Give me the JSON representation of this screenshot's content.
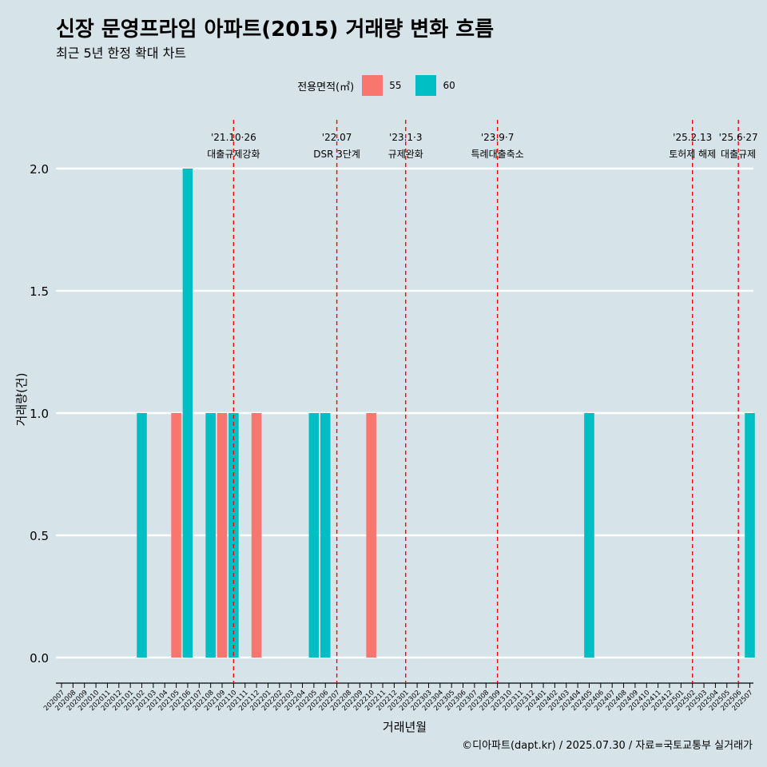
{
  "title": "신장 문영프라임 아파트(2015) 거래량 변화 흐름",
  "subtitle": "최근 5년 한정 확대 차트",
  "caption": "©디아파트(dapt.kr) / 2025.07.30 / 자료=국토교통부 실거래가",
  "legend": {
    "title": "전용면적(㎡)",
    "items": [
      {
        "label": "55",
        "color": "#f8766d"
      },
      {
        "label": "60",
        "color": "#00bfc4"
      }
    ]
  },
  "chart_data": {
    "type": "bar",
    "xlabel": "거래년월",
    "ylabel": "거래량(건)",
    "ylim": [
      0,
      2
    ],
    "yticks": [
      0.0,
      0.5,
      1.0,
      1.5,
      2.0
    ],
    "ytick_labels": [
      "0.0",
      "0.5",
      "1.0",
      "1.5",
      "2.0"
    ],
    "grid": true,
    "categories": [
      "202007",
      "202008",
      "202009",
      "202010",
      "202011",
      "202012",
      "202101",
      "202102",
      "202103",
      "202104",
      "202105",
      "202106",
      "202107",
      "202108",
      "202109",
      "202110",
      "202111",
      "202112",
      "202201",
      "202202",
      "202203",
      "202204",
      "202205",
      "202206",
      "202207",
      "202208",
      "202209",
      "202210",
      "202211",
      "202212",
      "202301",
      "202302",
      "202303",
      "202304",
      "202305",
      "202306",
      "202307",
      "202308",
      "202309",
      "202310",
      "202311",
      "202312",
      "202401",
      "202402",
      "202403",
      "202404",
      "202405",
      "202406",
      "202407",
      "202408",
      "202409",
      "202410",
      "202411",
      "202412",
      "202501",
      "202502",
      "202503",
      "202504",
      "202505",
      "202506",
      "202507"
    ],
    "series": [
      {
        "name": "55",
        "color": "#f8766d",
        "points": [
          {
            "x": "202105",
            "value": 1
          },
          {
            "x": "202109",
            "value": 1
          },
          {
            "x": "202112",
            "value": 1
          },
          {
            "x": "202210",
            "value": 1
          }
        ]
      },
      {
        "name": "60",
        "color": "#00bfc4",
        "points": [
          {
            "x": "202102",
            "value": 1
          },
          {
            "x": "202106",
            "value": 2
          },
          {
            "x": "202108",
            "value": 1
          },
          {
            "x": "202110",
            "value": 1
          },
          {
            "x": "202205",
            "value": 1
          },
          {
            "x": "202206",
            "value": 1
          },
          {
            "x": "202405",
            "value": 1
          },
          {
            "x": "202507",
            "value": 1
          }
        ]
      }
    ],
    "annotations": [
      {
        "x": "202110",
        "date": "'21.10·26",
        "label": "대출규제강화"
      },
      {
        "x": "202207",
        "date": "'22.07",
        "label": "DSR 3단계"
      },
      {
        "x": "202301",
        "date": "'23.1·3",
        "label": "규제완화"
      },
      {
        "x": "202309",
        "date": "'23.9·7",
        "label": "특례대출축소"
      },
      {
        "x": "202502",
        "date": "'25.2.13",
        "label": "토허제 해제"
      },
      {
        "x": "202506",
        "date": "'25.6·27",
        "label": "대출규제"
      }
    ]
  }
}
